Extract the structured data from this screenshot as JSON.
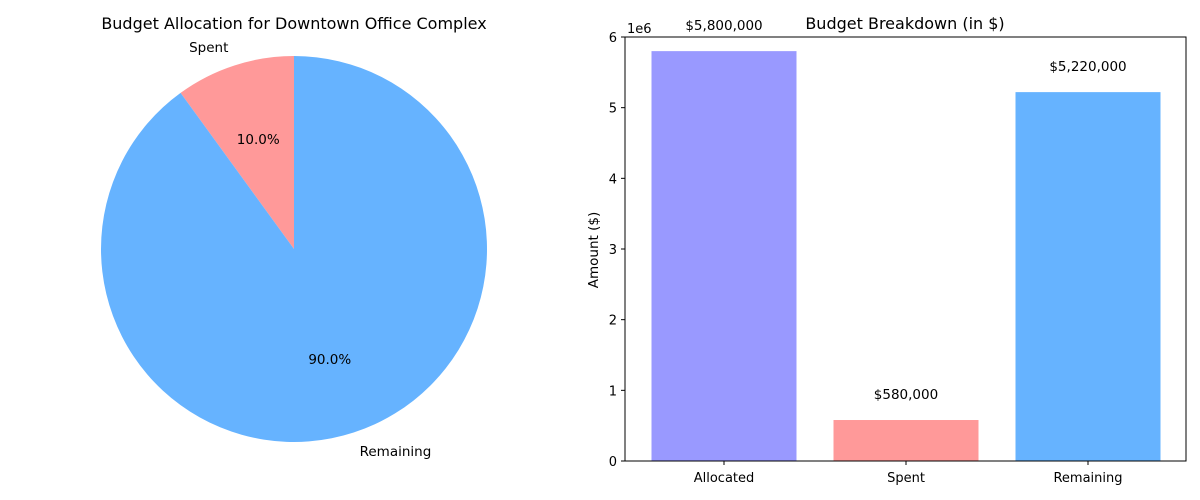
{
  "chart_data": [
    {
      "type": "pie",
      "title": "Budget Allocation for Downtown Office Complex",
      "slices": [
        {
          "label": "Spent",
          "value": 580000,
          "pct_label": "10.0%",
          "color": "#ff9999"
        },
        {
          "label": "Remaining",
          "value": 5220000,
          "pct_label": "90.0%",
          "color": "#66b3ff"
        }
      ],
      "start_angle_deg": 90,
      "direction": "counterclockwise"
    },
    {
      "type": "bar",
      "title": "Budget Breakdown (in $)",
      "ylabel": "Amount ($)",
      "offset_label": "1e6",
      "categories": [
        "Allocated",
        "Spent",
        "Remaining"
      ],
      "values": [
        5800000,
        580000,
        5220000
      ],
      "value_labels": [
        "$5,800,000",
        "$580,000",
        "$5,220,000"
      ],
      "colors": [
        "#9999ff",
        "#ff9999",
        "#66b3ff"
      ],
      "ylim": [
        0,
        6000000
      ],
      "yticks": [
        0,
        1000000,
        2000000,
        3000000,
        4000000,
        5000000,
        6000000
      ],
      "ytick_labels": [
        "0",
        "1",
        "2",
        "3",
        "4",
        "5",
        "6"
      ],
      "grid": false
    }
  ]
}
